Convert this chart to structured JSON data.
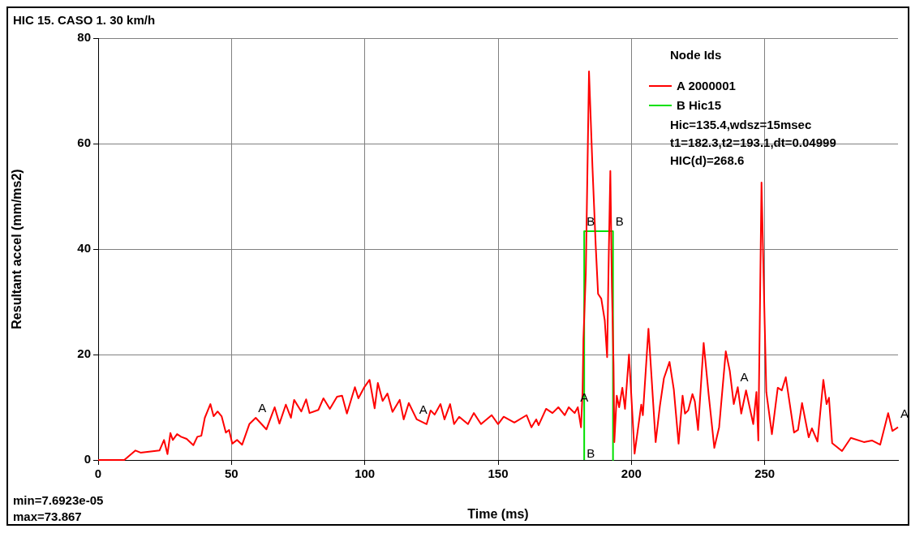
{
  "chart_data": {
    "type": "line",
    "title": "HIC 15. CASO 1. 30 km/h",
    "xlabel": "Time (ms)",
    "ylabel": "Resultant accel (mm/ms2)",
    "legend_title": "Node Ids",
    "legend": "top right",
    "grid": true,
    "marker": "none",
    "line_style": "solid",
    "xlim": [
      0,
      300
    ],
    "xticks": [
      0,
      50,
      100,
      150,
      200,
      250
    ],
    "ylim": [
      0,
      80
    ],
    "yticks": [
      0,
      20,
      40,
      60,
      80
    ],
    "series": [
      {
        "name": "A 2000001",
        "color": "#ff0000",
        "x": [
          0,
          9.8,
          14,
          15.9,
          23,
          24.7,
          26,
          27.1,
          28,
          29.6,
          31.1,
          33.2,
          35.7,
          37.2,
          38.7,
          40,
          42.1,
          43.3,
          44.8,
          46.3,
          47.9,
          49.1,
          50.3,
          52.1,
          54,
          56.7,
          59.1,
          63.1,
          66.2,
          68,
          70.4,
          72.3,
          73.5,
          76.2,
          78,
          79.3,
          82.6,
          84.5,
          86.9,
          89.6,
          91.5,
          93.3,
          96.3,
          97.6,
          99.7,
          101.8,
          103.7,
          104.9,
          106.7,
          108.5,
          110.4,
          113.1,
          114.6,
          116.5,
          119.5,
          123.2,
          124.7,
          126.2,
          128.4,
          129.9,
          132,
          133.5,
          135.4,
          138.7,
          140.9,
          143.6,
          147.6,
          150,
          152.1,
          156.1,
          160.7,
          162.5,
          164.3,
          165.2,
          168,
          170.4,
          172.6,
          175,
          176.5,
          178.7,
          179.9,
          181.1,
          181.7,
          182,
          182.9,
          184.1,
          185.4,
          186.6,
          187.5,
          188.7,
          190,
          190.9,
          191.5,
          192.1,
          192.7,
          193.3,
          193.6,
          194.5,
          195.4,
          196.6,
          197.6,
          199.1,
          201.2,
          203.7,
          204.3,
          206.4,
          209.1,
          210.7,
          212.2,
          214.3,
          215.9,
          217.7,
          219.2,
          220.1,
          221.3,
          222.9,
          223.8,
          225,
          227.1,
          229,
          231.1,
          232.9,
          235.4,
          236.9,
          238.4,
          239.9,
          241.2,
          243,
          245.7,
          246.9,
          247.6,
          248.8,
          250,
          250.6,
          252.7,
          254.9,
          256.4,
          257.9,
          261,
          262.5,
          264,
          266.5,
          267.7,
          269.8,
          272,
          273.2,
          274.1,
          275.3,
          279,
          282.3,
          287.2,
          290.2,
          293.3,
          296.3,
          297.9,
          300
        ],
        "values": [
          0,
          0,
          1.8,
          1.4,
          1.8,
          3.8,
          1.1,
          5.1,
          3.8,
          4.9,
          4.4,
          4,
          2.8,
          4.4,
          4.6,
          8,
          10.6,
          8.3,
          9.2,
          8.3,
          5.2,
          5.7,
          3.1,
          3.8,
          2.9,
          6.8,
          8,
          5.8,
          10,
          6.9,
          10.5,
          8,
          11.4,
          9.2,
          11.5,
          8.9,
          9.5,
          11.7,
          9.7,
          12,
          12.2,
          8.8,
          13.8,
          11.7,
          13.7,
          15.2,
          9.8,
          14.6,
          11.2,
          12.6,
          9.1,
          11.4,
          7.7,
          10.8,
          7.7,
          6.8,
          9.4,
          8.6,
          10.6,
          7.7,
          10.6,
          6.8,
          8.2,
          6.8,
          8.9,
          6.8,
          8.5,
          6.8,
          8.2,
          7.1,
          8.5,
          6.2,
          7.7,
          6.6,
          9.7,
          8.9,
          10,
          8.5,
          10,
          8.9,
          10,
          6.2,
          13.1,
          22.8,
          35.4,
          73.7,
          55.5,
          40.8,
          31.5,
          30.6,
          26.5,
          19.5,
          38.6,
          54.8,
          32.6,
          18,
          3.4,
          12.2,
          10,
          13.7,
          9.7,
          20,
          1.2,
          10.5,
          8.5,
          24.9,
          3.4,
          10.3,
          15.5,
          18.6,
          13.4,
          3.1,
          12.2,
          8.8,
          9.4,
          12.5,
          11.1,
          5.7,
          22.2,
          12.3,
          2.3,
          6.2,
          20.6,
          16.9,
          10.6,
          13.8,
          8.8,
          13.2,
          6.8,
          12.9,
          3.7,
          52.6,
          25.7,
          12.9,
          4.9,
          13.7,
          13.2,
          15.7,
          5.2,
          5.7,
          10.8,
          4.3,
          6,
          3.5,
          15.2,
          10.6,
          11.8,
          3.2,
          1.7,
          4.2,
          3.4,
          3.7,
          2.9,
          8.9,
          5.5,
          6.2
        ]
      },
      {
        "name": "B Hic15",
        "color": "#00e000",
        "x": [
          182.3,
          182.3,
          193.1,
          193.1
        ],
        "values": [
          0,
          43.4,
          43.4,
          0
        ]
      }
    ],
    "annotations": [
      "Hic=135.4,wdsz=15msec",
      "t1=182.3,t2=193.1,dt=0.04999",
      "HIC(d)=268.6",
      {
        "text": "A",
        "x": 59.1,
        "y": 8
      },
      {
        "text": "A",
        "x": 119.5,
        "y": 7.7
      },
      {
        "text": "A",
        "x": 179.9,
        "y": 10
      },
      {
        "text": "A",
        "x": 239.9,
        "y": 13.8
      },
      {
        "text": "A",
        "x": 300,
        "y": 7
      },
      {
        "text": "B",
        "x": 182.3,
        "y": 43.4
      },
      {
        "text": "B",
        "x": 193.1,
        "y": 43.4
      },
      {
        "text": "B",
        "x": 182.3,
        "y": 0
      },
      "min=7.6923e-05",
      "max=73.867"
    ]
  }
}
